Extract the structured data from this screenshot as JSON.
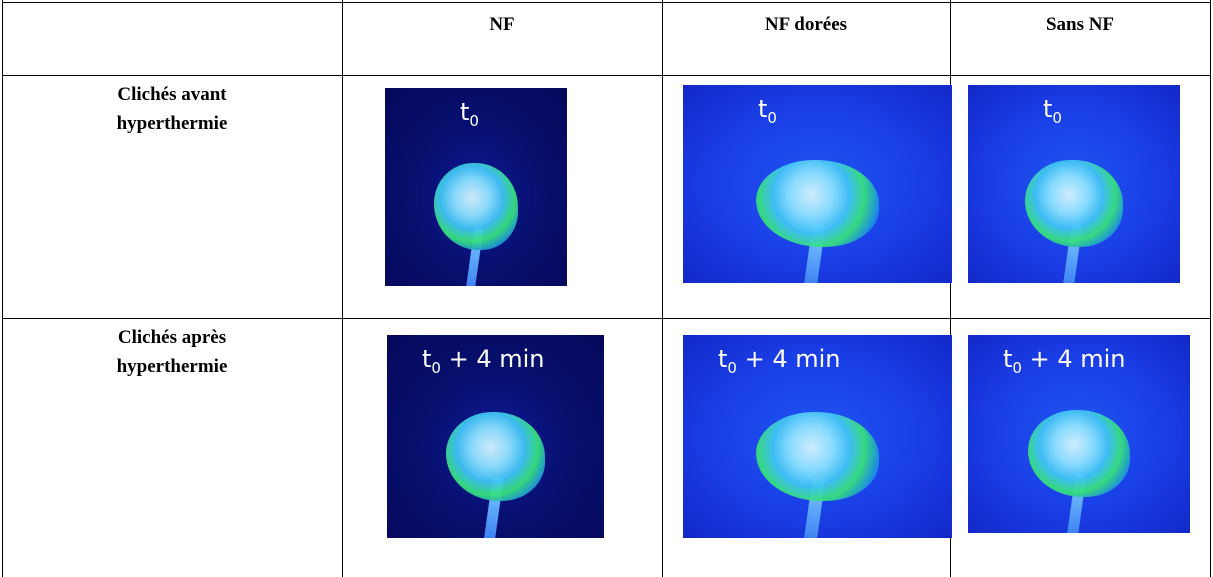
{
  "table": {
    "columns": [
      "NF",
      "NF dorées",
      "Sans NF"
    ],
    "rows": [
      {
        "label": [
          "Clichés avant",
          "hyperthermie"
        ],
        "images": [
          {
            "time": "t",
            "sub": "0"
          },
          {
            "time": "t",
            "sub": "0"
          },
          {
            "time": "t",
            "sub": "0"
          }
        ]
      },
      {
        "label": [
          "Clichés après",
          "hyperthermie"
        ],
        "images": [
          {
            "time": "t",
            "sub": "0",
            "suffix": " + 4 min"
          },
          {
            "time": "t",
            "sub": "0",
            "suffix": " + 4 min"
          },
          {
            "time": "t",
            "sub": "0",
            "suffix": " + 4 min"
          }
        ]
      }
    ]
  }
}
